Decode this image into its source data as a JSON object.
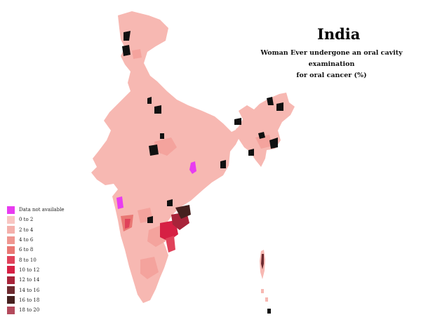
{
  "title": "India",
  "subtitle_line1": "Woman Ever undergone an oral cavity examination",
  "subtitle_line2": "for oral cancer (%)",
  "legend": [
    {
      "label": "Data not available",
      "color": "#e83cf0"
    },
    {
      "label": "0 to 2",
      "color": "#f8c6c2"
    },
    {
      "label": "2 to 4",
      "color": "#f4b0ab"
    },
    {
      "label": "4 to 6",
      "color": "#ef9690"
    },
    {
      "label": "6 to 8",
      "color": "#e97773"
    },
    {
      "label": "8 to 10",
      "color": "#e0425a"
    },
    {
      "label": "10 to 12",
      "color": "#d62044"
    },
    {
      "label": "12 to 14",
      "color": "#a8243a"
    },
    {
      "label": "14 to 16",
      "color": "#6e2b30"
    },
    {
      "label": "16 to 18",
      "color": "#45211f"
    },
    {
      "label": "18 to 20",
      "color": "#b34a5c"
    }
  ],
  "colors": {
    "base": "#f7b8b2",
    "no_data": "#e83cf0",
    "black": "#111111"
  }
}
